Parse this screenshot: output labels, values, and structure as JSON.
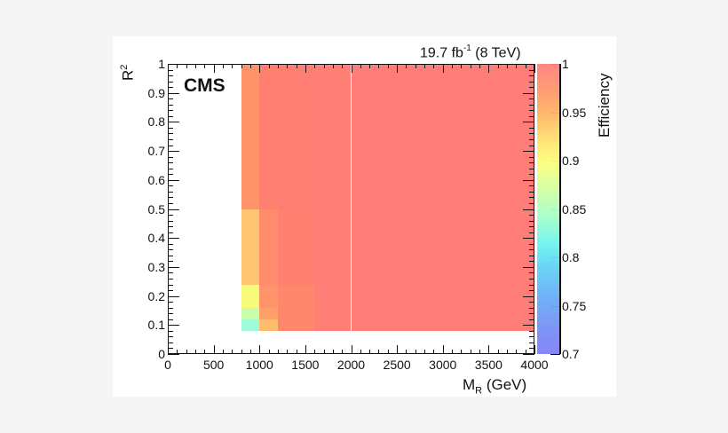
{
  "header": {
    "experiment_label": "CMS",
    "lumi_prefix": "19.7 fb",
    "lumi_exp": "-1",
    "lumi_suffix": " (8 TeV)"
  },
  "axes": {
    "x_title_main": "M",
    "x_title_sub": "R",
    "x_title_unit": " (GeV)",
    "y_title_main": "R",
    "y_title_sup": "2",
    "colorbar_title": "Efficiency"
  },
  "chart_data": {
    "type": "heatmap",
    "title": "",
    "annotations": [
      "CMS",
      "19.7 fb-1 (8 TeV)"
    ],
    "xlabel": "M_R (GeV)",
    "ylabel": "R^2",
    "zlabel": "Efficiency",
    "xlim": [
      0,
      4000
    ],
    "ylim": [
      0,
      1
    ],
    "zlim": [
      0.7,
      1
    ],
    "x_ticks": [
      "0",
      "500",
      "1000",
      "1500",
      "2000",
      "2500",
      "3000",
      "3500",
      "4000"
    ],
    "y_ticks": [
      "0",
      "0.1",
      "0.2",
      "0.3",
      "0.4",
      "0.5",
      "0.6",
      "0.7",
      "0.8",
      "0.9",
      "1"
    ],
    "z_ticks": [
      "0.7",
      "0.75",
      "0.8",
      "0.85",
      "0.9",
      "0.95",
      "1"
    ],
    "x_bin_edges": [
      800,
      1000,
      1200,
      1600,
      2000,
      4000
    ],
    "y_bin_edges": [
      0.08,
      0.12,
      0.16,
      0.24,
      0.5,
      1.0
    ],
    "cells": [
      {
        "x0": 800,
        "x1": 1000,
        "y0": 0.08,
        "y1": 0.12,
        "z": 0.835,
        "color": "#a0fcd8"
      },
      {
        "x0": 800,
        "x1": 1000,
        "y0": 0.12,
        "y1": 0.16,
        "z": 0.86,
        "color": "#ccffaa"
      },
      {
        "x0": 800,
        "x1": 1000,
        "y0": 0.16,
        "y1": 0.24,
        "z": 0.89,
        "color": "#f8fb7a"
      },
      {
        "x0": 800,
        "x1": 1000,
        "y0": 0.24,
        "y1": 0.5,
        "z": 0.935,
        "color": "#ffc572"
      },
      {
        "x0": 800,
        "x1": 1000,
        "y0": 0.5,
        "y1": 1.0,
        "z": 0.965,
        "color": "#ff9368"
      },
      {
        "x0": 1000,
        "x1": 1200,
        "y0": 0.08,
        "y1": 0.12,
        "z": 0.94,
        "color": "#ffbd6e"
      },
      {
        "x0": 1000,
        "x1": 1200,
        "y0": 0.12,
        "y1": 0.16,
        "z": 0.955,
        "color": "#ffa068"
      },
      {
        "x0": 1000,
        "x1": 1200,
        "y0": 0.16,
        "y1": 0.24,
        "z": 0.965,
        "color": "#ff946a"
      },
      {
        "x0": 1000,
        "x1": 1200,
        "y0": 0.24,
        "y1": 0.5,
        "z": 0.97,
        "color": "#ff8c6c"
      },
      {
        "x0": 1000,
        "x1": 1200,
        "y0": 0.5,
        "y1": 1.0,
        "z": 0.985,
        "color": "#ff8070"
      },
      {
        "x0": 1200,
        "x1": 1600,
        "y0": 0.08,
        "y1": 0.24,
        "z": 0.975,
        "color": "#ff876c"
      },
      {
        "x0": 1200,
        "x1": 1600,
        "y0": 0.24,
        "y1": 0.5,
        "z": 0.985,
        "color": "#ff8070"
      },
      {
        "x0": 1200,
        "x1": 1600,
        "y0": 0.5,
        "y1": 1.0,
        "z": 0.99,
        "color": "#ff7e74"
      },
      {
        "x0": 1600,
        "x1": 2000,
        "y0": 0.08,
        "y1": 1.0,
        "z": 0.99,
        "color": "#ff7e76"
      },
      {
        "x0": 2000,
        "x1": 4000,
        "y0": 0.08,
        "y1": 1.0,
        "z": 0.995,
        "color": "#ff7c78"
      }
    ],
    "grid": false,
    "legend_position": "right colorbar"
  }
}
